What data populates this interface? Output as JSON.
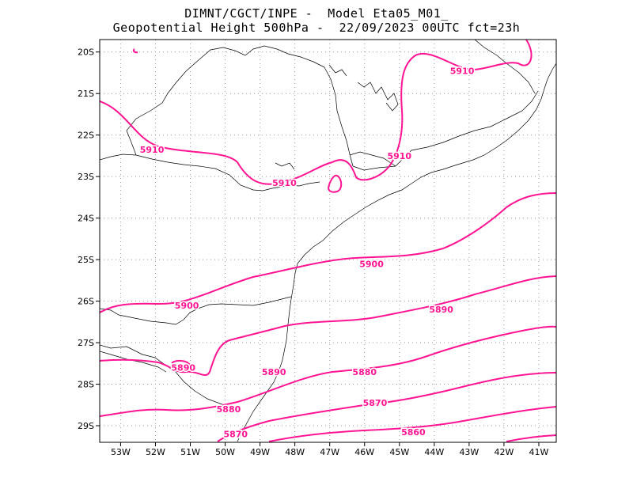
{
  "title": {
    "line1": "DIMNT/CGCT/INPE -  Model Eta05_M01_",
    "line2": "Geopotential Height 500hPa -  22/09/2023 00UTC fct=23h"
  },
  "axes": {
    "lon_range": [
      -53.6,
      -40.5
    ],
    "lat_range": [
      -29.4,
      -19.7
    ],
    "lon_ticks": [
      -53,
      -52,
      -51,
      -50,
      -49,
      -48,
      -47,
      -46,
      -45,
      -44,
      -43,
      -42,
      -41
    ],
    "lat_ticks": [
      -20,
      -21,
      -22,
      -23,
      -24,
      -25,
      -26,
      -27,
      -28,
      -29
    ],
    "lon_labels": [
      "53W",
      "52W",
      "51W",
      "50W",
      "49W",
      "48W",
      "47W",
      "46W",
      "45W",
      "44W",
      "43W",
      "42W",
      "41W"
    ],
    "lat_labels": [
      "20S",
      "21S",
      "22S",
      "23S",
      "24S",
      "25S",
      "26S",
      "27S",
      "28S",
      "29S"
    ]
  },
  "style": {
    "contour_color": "#ff1493",
    "map_color": "#000000",
    "grid_color": "#9a9a9a"
  },
  "contour_labels": [
    {
      "text": "5910",
      "lon": -43.2,
      "lat": -20.45
    },
    {
      "text": "5910",
      "lon": -52.1,
      "lat": -22.35
    },
    {
      "text": "5910",
      "lon": -48.3,
      "lat": -23.15
    },
    {
      "text": "5910",
      "lon": -45.0,
      "lat": -22.5
    },
    {
      "text": "5900",
      "lon": -45.8,
      "lat": -25.1
    },
    {
      "text": "5900",
      "lon": -51.1,
      "lat": -26.1
    },
    {
      "text": "5890",
      "lon": -48.6,
      "lat": -27.7
    },
    {
      "text": "5890",
      "lon": -51.2,
      "lat": -27.6
    },
    {
      "text": "5890",
      "lon": -43.8,
      "lat": -26.2
    },
    {
      "text": "5880",
      "lon": -46.0,
      "lat": -27.7
    },
    {
      "text": "5880",
      "lon": -49.9,
      "lat": -28.6
    },
    {
      "text": "5870",
      "lon": -45.7,
      "lat": -28.45
    },
    {
      "text": "5870",
      "lon": -49.7,
      "lat": -29.2
    },
    {
      "text": "5860",
      "lon": -44.6,
      "lat": -29.15
    }
  ]
}
